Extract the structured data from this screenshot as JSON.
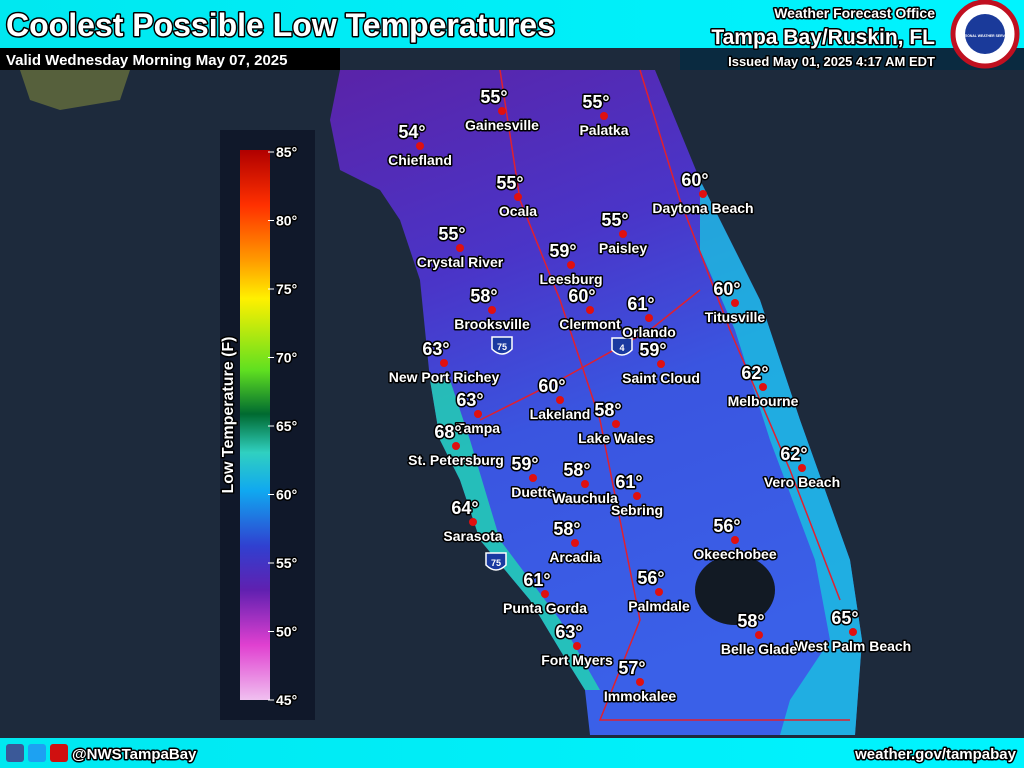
{
  "header": {
    "title": "Coolest Possible Low Temperatures",
    "valid": "Valid Wednesday Morning May 07, 2025",
    "office": "Weather Forecast Office",
    "location": "Tampa Bay/Ruskin, FL",
    "issued": "Issued May 01, 2025 4:17 AM EDT",
    "logo": "NATIONAL WEATHER SERVICE"
  },
  "legend": {
    "title": "Low Temperature (F)",
    "ticks": [
      "85°",
      "80°",
      "75°",
      "70°",
      "65°",
      "60°",
      "55°",
      "50°",
      "45°"
    ]
  },
  "interstates": [
    "75",
    "4",
    "75"
  ],
  "cities": [
    {
      "name": "Gainesville",
      "temp": "55°"
    },
    {
      "name": "Palatka",
      "temp": "55°"
    },
    {
      "name": "Chiefland",
      "temp": "54°"
    },
    {
      "name": "Ocala",
      "temp": "55°"
    },
    {
      "name": "Daytona Beach",
      "temp": "60°"
    },
    {
      "name": "Paisley",
      "temp": "55°"
    },
    {
      "name": "Crystal River",
      "temp": "55°"
    },
    {
      "name": "Leesburg",
      "temp": "59°"
    },
    {
      "name": "Clermont",
      "temp": "60°"
    },
    {
      "name": "Orlando",
      "temp": "61°"
    },
    {
      "name": "Titusville",
      "temp": "60°"
    },
    {
      "name": "Brooksville",
      "temp": "58°"
    },
    {
      "name": "New Port Richey",
      "temp": "63°"
    },
    {
      "name": "Saint Cloud",
      "temp": "59°"
    },
    {
      "name": "Melbourne",
      "temp": "62°"
    },
    {
      "name": "Lakeland",
      "temp": "60°"
    },
    {
      "name": "Tampa",
      "temp": "63°"
    },
    {
      "name": "Lake Wales",
      "temp": "58°"
    },
    {
      "name": "St. Petersburg",
      "temp": "68°"
    },
    {
      "name": "Duette",
      "temp": "59°"
    },
    {
      "name": "Wauchula",
      "temp": "58°"
    },
    {
      "name": "Vero Beach",
      "temp": "62°"
    },
    {
      "name": "Sebring",
      "temp": "61°"
    },
    {
      "name": "Sarasota",
      "temp": "64°"
    },
    {
      "name": "Okeechobee",
      "temp": "56°"
    },
    {
      "name": "Arcadia",
      "temp": "58°"
    },
    {
      "name": "Punta Gorda",
      "temp": "61°"
    },
    {
      "name": "Palmdale",
      "temp": "56°"
    },
    {
      "name": "West Palm Beach",
      "temp": "65°"
    },
    {
      "name": "Belle Glade",
      "temp": "58°"
    },
    {
      "name": "Fort Myers",
      "temp": "63°"
    },
    {
      "name": "Immokalee",
      "temp": "57°"
    }
  ],
  "footer": {
    "handle": "@NWSTampaBay",
    "url": "weather.gov/tampabay"
  }
}
